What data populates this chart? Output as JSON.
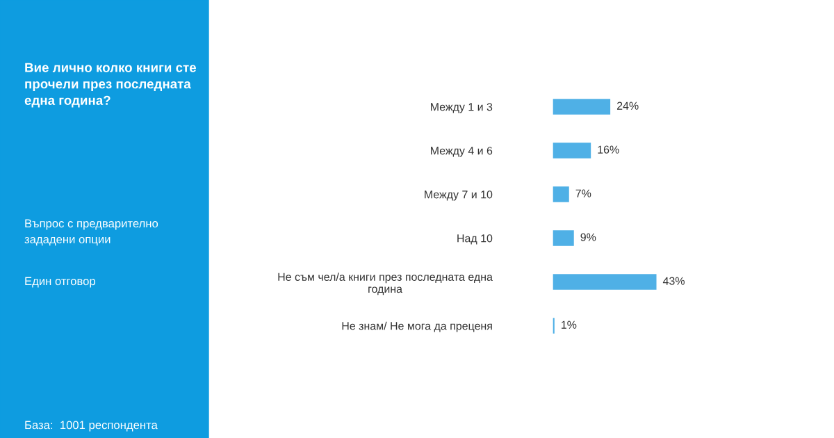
{
  "chart_data": {
    "type": "bar",
    "orientation": "horizontal",
    "title": "Вие лично колко книги сте\nпрочели през последната\nедна година?",
    "categories": [
      "Между 1 и 3",
      "Между 4 и 6",
      "Между 7 и 10",
      "Над 10",
      "Не съм чел/а книги през последната една\nгодина",
      "Не знам/ Не мога да преценя"
    ],
    "values": [
      24,
      16,
      7,
      9,
      43,
      1
    ],
    "value_labels": [
      "24%",
      "16%",
      "7%",
      "9%",
      "43%",
      "1%"
    ],
    "color": "#4fb0e6",
    "grid": false,
    "legend": false,
    "annotations": [
      "Въпрос с предварително\nзададени опции",
      "Един отговор",
      "База:  1001 респондента"
    ]
  }
}
